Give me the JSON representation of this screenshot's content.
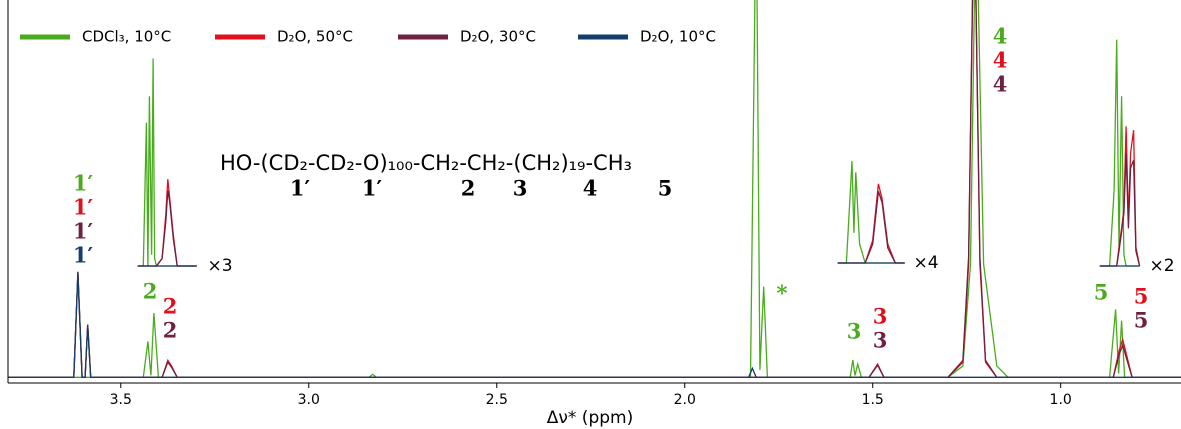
{
  "chart_data": {
    "type": "line",
    "xlabel": "Δν* (ppm)",
    "xlim": [
      3.8,
      0.68
    ],
    "ylim": [
      -1.5,
      100
    ],
    "xticks": [
      {
        "value": 3.5,
        "label": "3.5"
      },
      {
        "value": 3.0,
        "label": "3.0"
      },
      {
        "value": 2.5,
        "label": "2.5"
      },
      {
        "value": 2.0,
        "label": "2.0"
      },
      {
        "value": 1.5,
        "label": "1.5"
      },
      {
        "value": 1.0,
        "label": "1.0"
      }
    ],
    "legend": "top",
    "series": [
      {
        "name": "CDCl₃, 10°C",
        "color": "#4aab1e",
        "x": [
          3.8,
          3.44,
          3.428,
          3.42,
          3.412,
          3.4,
          2.84,
          2.83,
          2.82,
          1.825,
          1.81,
          1.8,
          1.79,
          1.78,
          1.56,
          1.553,
          1.547,
          1.54,
          1.53,
          1.3,
          1.26,
          1.24,
          1.225,
          1.205,
          1.17,
          1.14,
          0.87,
          0.854,
          0.846,
          0.838,
          0.83,
          0.68
        ],
        "values": [
          0,
          0,
          9.5,
          0.5,
          17,
          0,
          0,
          0.8,
          0,
          0,
          130,
          2,
          24,
          0,
          0,
          4.6,
          0.5,
          3.5,
          0,
          0,
          3,
          30,
          130,
          30,
          3,
          0,
          0,
          18,
          1,
          15,
          0,
          0
        ]
      },
      {
        "name": "D₂O, 50°C",
        "color": "#e0101e",
        "x": [
          3.8,
          3.625,
          3.614,
          3.603,
          3.595,
          3.588,
          3.58,
          3.39,
          3.375,
          3.365,
          3.35,
          1.51,
          1.487,
          1.47,
          1.3,
          1.26,
          1.245,
          1.23,
          1.215,
          1.2,
          1.17,
          0.86,
          0.845,
          0.835,
          0.825,
          0.81,
          0.68
        ],
        "values": [
          0,
          0,
          28,
          0,
          0,
          14,
          0,
          0,
          4.5,
          3,
          0,
          0,
          3.5,
          0,
          0,
          4,
          30,
          130,
          30,
          4,
          0,
          0,
          7,
          10,
          6,
          0,
          0
        ]
      },
      {
        "name": "D₂O, 30°C",
        "color": "#6e2040",
        "x": [
          3.8,
          3.625,
          3.614,
          3.603,
          3.595,
          3.588,
          3.58,
          3.39,
          3.375,
          3.365,
          3.35,
          1.51,
          1.487,
          1.47,
          1.3,
          1.26,
          1.245,
          1.23,
          1.215,
          1.2,
          1.17,
          0.86,
          0.845,
          0.835,
          0.825,
          0.81,
          0.68
        ],
        "values": [
          0,
          0,
          27.5,
          0,
          0,
          13.8,
          0,
          0,
          4,
          2.7,
          0,
          0,
          3.2,
          0,
          0,
          4.5,
          32,
          130,
          32,
          4.5,
          0,
          0,
          6,
          8.5,
          5,
          0,
          0
        ]
      },
      {
        "name": "D₂O, 10°C",
        "color": "#133e6b",
        "x": [
          3.8,
          3.625,
          3.614,
          3.603,
          3.595,
          3.588,
          3.58,
          1.83,
          1.82,
          1.81,
          0.68
        ],
        "values": [
          0,
          0,
          27.9,
          0,
          0,
          13.9,
          0,
          0,
          2.4,
          0,
          0
        ]
      }
    ],
    "insets": [
      {
        "label": "×3",
        "x": [
          3.455,
          3.44,
          3.432,
          3.428,
          3.424,
          3.418,
          3.414,
          3.41,
          3.405,
          3.39,
          3.38,
          3.375,
          3.37,
          3.36,
          3.35,
          3.298
        ],
        "series": [
          {
            "values": [
              0,
              0,
              38,
              0,
              45,
              3,
              55,
              2,
              0,
              0,
              0,
              0,
              0,
              0,
              0,
              0
            ]
          },
          {
            "values": [
              0,
              0,
              0,
              0,
              0,
              0,
              0,
              0,
              0,
              2,
              14,
              23,
              18,
              8,
              0,
              0
            ]
          },
          {
            "values": [
              0,
              0,
              0,
              0,
              0,
              0,
              0,
              0,
              0,
              2,
              12,
              20,
              17,
              7,
              0,
              0
            ]
          },
          {
            "values": [
              0,
              0,
              0,
              0,
              0,
              0,
              0,
              0,
              0,
              0,
              0,
              0,
              0,
              0,
              0,
              0
            ]
          }
        ]
      },
      {
        "label": "×4",
        "x": [
          1.593,
          1.57,
          1.555,
          1.55,
          1.545,
          1.535,
          1.52,
          1.5,
          1.485,
          1.475,
          1.46,
          1.44,
          1.415
        ],
        "series": [
          {
            "values": [
              0,
              0,
              27,
              8,
              24,
              5,
              0,
              0,
              0,
              0,
              0,
              0,
              0
            ]
          },
          {
            "values": [
              0,
              0,
              0,
              0,
              0,
              0,
              0,
              6,
              21,
              17,
              5,
              0,
              0
            ]
          },
          {
            "values": [
              0,
              0,
              0,
              0,
              0,
              0,
              0,
              5,
              19,
              16,
              4,
              0,
              0
            ]
          },
          {
            "values": [
              0,
              0,
              0,
              0,
              0,
              0,
              0,
              0,
              0,
              0,
              0,
              0,
              0
            ]
          }
        ]
      },
      {
        "label": "×2",
        "x": [
          0.896,
          0.87,
          0.858,
          0.851,
          0.845,
          0.838,
          0.832,
          0.826,
          0.82,
          0.814,
          0.806,
          0.8,
          0.79
        ],
        "series": [
          {
            "values": [
              0,
              0,
              20,
              60,
              5,
              45,
              3,
              0,
              0,
              0,
              0,
              0,
              0
            ]
          },
          {
            "values": [
              0,
              0,
              0,
              0,
              5,
              10,
              15,
              37,
              12,
              30,
              36,
              5,
              0
            ]
          },
          {
            "values": [
              0,
              0,
              0,
              0,
              4,
              9,
              14,
              30,
              10,
              26,
              28,
              4,
              0
            ]
          },
          {
            "values": [
              0,
              0,
              0,
              0,
              0,
              0,
              0,
              0,
              0,
              0,
              0,
              0,
              0
            ]
          }
        ]
      }
    ],
    "formula": "HO-(CD₂-CD₂-O)₁₀₀-CH₂-CH₂-(CH₂)₁₉-CH₃",
    "formula_labels": [
      "1′",
      "1′",
      "2",
      "3",
      "4",
      "5"
    ],
    "peak_labels": [
      {
        "text": "1′",
        "color": "#4aab1e"
      },
      {
        "text": "1′",
        "color": "#e0101e"
      },
      {
        "text": "1′",
        "color": "#6e2040"
      },
      {
        "text": "1′",
        "color": "#133e6b"
      },
      {
        "text": "2",
        "color": "#4aab1e"
      },
      {
        "text": "2",
        "color": "#e0101e"
      },
      {
        "text": "2",
        "color": "#6e2040"
      },
      {
        "text": "*",
        "color": "#4aab1e"
      },
      {
        "text": "3",
        "color": "#4aab1e"
      },
      {
        "text": "3",
        "color": "#e0101e"
      },
      {
        "text": "3",
        "color": "#6e2040"
      },
      {
        "text": "4",
        "color": "#4aab1e"
      },
      {
        "text": "4",
        "color": "#e0101e"
      },
      {
        "text": "4",
        "color": "#6e2040"
      },
      {
        "text": "5",
        "color": "#4aab1e"
      },
      {
        "text": "5",
        "color": "#e0101e"
      },
      {
        "text": "5",
        "color": "#6e2040"
      }
    ]
  }
}
